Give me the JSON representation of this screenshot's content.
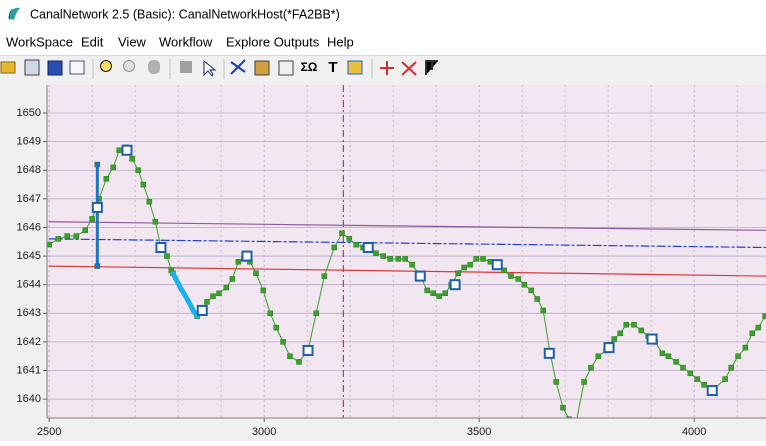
{
  "window": {
    "title": "CanalNetwork 2.5  (Basic): CanalNetworkHost(*FA2BB*)"
  },
  "menu": [
    "WorkSpace",
    "Edit",
    "View",
    "Workflow",
    "Explore Outputs",
    "Help"
  ],
  "toolbar": {
    "sum_button": "ΣΩ",
    "text_button": "T"
  },
  "chart_data": {
    "type": "line",
    "xlim": [
      2495,
      4167
    ],
    "ylim": [
      1639.34,
      1650.98
    ],
    "xticks": [
      2500,
      3000,
      3500,
      4000
    ],
    "xminorticks": [
      2600,
      2700,
      2800,
      2900,
      3100,
      3200,
      3300,
      3400,
      3600,
      3700,
      3800,
      3900,
      4100
    ],
    "yticks": [
      1640,
      1641,
      1642,
      1643,
      1644,
      1645,
      1646,
      1647,
      1648,
      1649,
      1650
    ],
    "grid": true,
    "vlines": [
      {
        "x": 3184,
        "color": "#a0203a"
      }
    ],
    "series": [
      {
        "color": "#d63a3a",
        "width": 1.2,
        "x": [
          2500,
          4167
        ],
        "values": [
          1644.65,
          1644.3
        ]
      },
      {
        "color": "#8e5a9e",
        "width": 1.2,
        "x": [
          2500,
          4167
        ],
        "values": [
          1646.2,
          1645.9
        ]
      },
      {
        "color": "#2040d0",
        "width": 1.2,
        "dash": "8 3 2 3",
        "x": [
          2500,
          4167
        ],
        "values": [
          1645.6,
          1645.3
        ]
      },
      {
        "color": "#3aa12a",
        "width": 1,
        "marker": "dot",
        "x": [
          2500,
          2521,
          2542,
          2563,
          2584,
          2600,
          2616,
          2633,
          2649,
          2663,
          2679,
          2693,
          2707,
          2719,
          2733,
          2747,
          2760,
          2774,
          2784,
          2788,
          2844,
          2856,
          2867,
          2881,
          2895,
          2912,
          2926,
          2940,
          2953,
          2967,
          2981,
          2998,
          3014,
          3028,
          3044,
          3060,
          3081,
          3102,
          3121,
          3140,
          3163,
          3181,
          3198,
          3214,
          3230,
          3244,
          3260,
          3277,
          3293,
          3312,
          3328,
          3344,
          3363,
          3379,
          3393,
          3407,
          3421,
          3435,
          3451,
          3465,
          3479,
          3493,
          3509,
          3526,
          3542,
          3558,
          3574,
          3591,
          3605,
          3621,
          3635,
          3649,
          3665,
          3679,
          3695,
          3709,
          3723,
          3744,
          3760,
          3777,
          3795,
          3814,
          3828,
          3842,
          3860,
          3877,
          3893,
          3909,
          3926,
          3940,
          3958,
          3974,
          3991,
          4007,
          4023,
          4042,
          4072,
          4086,
          4102,
          4119,
          4135,
          4149,
          4165
        ],
        "values": [
          1645.4,
          1645.6,
          1645.7,
          1645.7,
          1645.9,
          1646.3,
          1647.0,
          1647.7,
          1648.1,
          1648.7,
          1648.8,
          1648.4,
          1648.0,
          1647.5,
          1646.9,
          1646.2,
          1645.3,
          1645.0,
          1644.5,
          1644.4,
          1642.9,
          1643.1,
          1643.4,
          1643.6,
          1643.7,
          1643.9,
          1644.2,
          1644.8,
          1644.9,
          1644.8,
          1644.4,
          1643.8,
          1643.0,
          1642.5,
          1642.0,
          1641.5,
          1641.3,
          1641.7,
          1643.0,
          1644.3,
          1645.3,
          1645.8,
          1645.6,
          1645.4,
          1645.3,
          1645.2,
          1645.1,
          1645.0,
          1644.9,
          1644.9,
          1644.9,
          1644.7,
          1644.3,
          1643.8,
          1643.7,
          1643.6,
          1643.7,
          1644.0,
          1644.4,
          1644.6,
          1644.7,
          1644.9,
          1644.9,
          1644.8,
          1644.7,
          1644.5,
          1644.3,
          1644.2,
          1644.0,
          1643.8,
          1643.5,
          1643.1,
          1641.6,
          1640.6,
          1639.7,
          1639.3,
          1639.0,
          1640.6,
          1641.1,
          1641.5,
          1641.7,
          1642.1,
          1642.3,
          1642.6,
          1642.6,
          1642.4,
          1642.2,
          1642.0,
          1641.6,
          1641.5,
          1641.3,
          1641.1,
          1640.9,
          1640.7,
          1640.5,
          1640.3,
          1640.7,
          1641.1,
          1641.5,
          1641.8,
          1642.3,
          1642.5,
          1642.9
        ]
      },
      {
        "color": "#19b0ee",
        "width": 5,
        "x": [
          2788,
          2805,
          2821,
          2835,
          2844
        ],
        "values": [
          1644.4,
          1643.9,
          1643.5,
          1643.1,
          1642.9
        ]
      },
      {
        "color": "#1f72c4",
        "width": 3,
        "marker": "dot",
        "x": [
          2612,
          2612
        ],
        "values": [
          1644.65,
          1648.2
        ]
      },
      {
        "color": "#1f5fa8",
        "marker": "square",
        "line": false,
        "x": [
          2612,
          2681,
          2760,
          2856,
          2960,
          3102,
          3242,
          3363,
          3444,
          3542,
          3663,
          3802,
          3902,
          4042
        ],
        "values": [
          1646.7,
          1648.7,
          1645.3,
          1643.1,
          1645.0,
          1641.7,
          1645.3,
          1644.3,
          1644.0,
          1644.7,
          1641.6,
          1641.8,
          1642.1,
          1640.3
        ]
      }
    ]
  }
}
